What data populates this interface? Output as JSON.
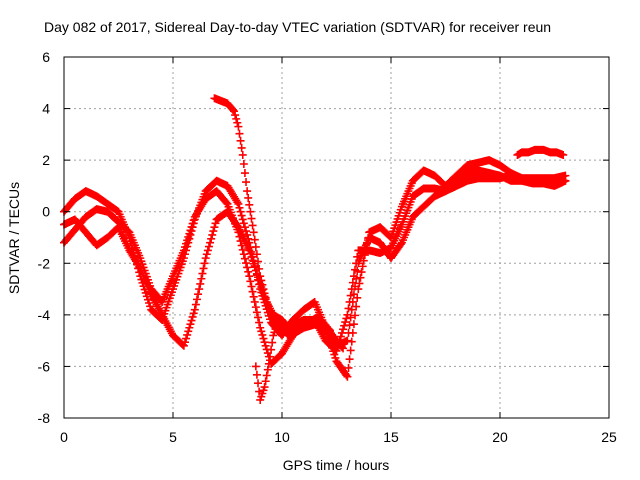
{
  "chart_data": {
    "type": "scatter",
    "title": "Day 082 of 2017, Sidereal Day-to-day VTEC variation (SDTVAR) for receiver reun",
    "xlabel": "GPS time / hours",
    "ylabel": "SDTVAR / TECUs",
    "xlim": [
      0,
      25
    ],
    "ylim": [
      -8,
      6
    ],
    "xticks": [
      0,
      5,
      10,
      15,
      20,
      25
    ],
    "yticks": [
      -8,
      -6,
      -4,
      -2,
      0,
      2,
      4,
      6
    ],
    "grid": true,
    "marker": "+",
    "series": [
      {
        "name": "trace-1",
        "color": "#ff0000",
        "x": [
          0,
          0.5,
          1.0,
          1.5,
          2.0,
          2.5,
          3.0,
          3.5,
          4.0,
          4.5,
          5.0,
          5.5,
          6.0,
          6.5,
          7.0,
          7.5,
          8.0,
          8.5,
          9.0,
          9.5,
          10.0,
          10.5,
          11.0,
          11.5,
          12.0,
          12.5,
          13.0,
          13.5,
          14.0,
          14.5,
          15.0,
          15.5,
          16.0,
          16.5,
          17.0,
          17.5,
          18.0,
          18.5,
          19.0,
          19.5,
          20.0,
          20.5,
          21.0,
          21.5,
          22.0,
          22.5,
          23.0
        ],
        "y": [
          0.0,
          0.5,
          0.8,
          0.6,
          0.3,
          0.0,
          -1.0,
          -2.5,
          -3.8,
          -4.2,
          -3.0,
          -1.8,
          -0.3,
          0.8,
          1.2,
          1.0,
          0.3,
          -1.2,
          -3.0,
          -4.3,
          -4.8,
          -4.2,
          -3.8,
          -3.5,
          -4.5,
          -5.8,
          -6.4,
          -3.0,
          -0.8,
          -0.6,
          -1.0,
          0.2,
          1.2,
          1.6,
          1.4,
          1.0,
          1.4,
          1.8,
          1.9,
          2.0,
          1.8,
          1.5,
          1.3,
          1.2,
          1.2,
          1.3,
          1.4
        ]
      },
      {
        "name": "trace-2",
        "color": "#ff0000",
        "x": [
          0,
          0.5,
          1.0,
          1.5,
          2.0,
          2.5,
          3.0,
          3.5,
          4.0,
          4.5,
          5.0,
          5.5,
          6.0,
          6.5,
          7.0,
          7.5,
          8.0,
          8.5,
          9.0,
          9.5,
          10.0,
          10.5,
          11.0,
          11.5,
          12.0,
          12.5,
          13.0,
          13.5,
          14.0,
          14.5,
          15.0,
          15.5,
          16.0,
          16.5,
          17.0,
          17.5,
          18.0,
          18.5,
          19.0,
          19.5,
          20.0,
          20.5,
          21.0,
          21.5,
          22.0,
          22.5,
          23.0
        ],
        "y": [
          -1.2,
          -0.7,
          -0.2,
          0.1,
          0.0,
          -0.4,
          -0.8,
          -1.8,
          -3.0,
          -3.5,
          -2.5,
          -1.5,
          -0.2,
          0.5,
          0.8,
          0.3,
          -0.8,
          -2.5,
          -4.5,
          -5.9,
          -5.5,
          -4.8,
          -4.4,
          -4.2,
          -5.0,
          -5.4,
          -4.0,
          -1.5,
          -1.5,
          -1.6,
          -1.4,
          -0.5,
          0.6,
          0.9,
          0.9,
          0.8,
          1.2,
          1.5,
          1.6,
          1.5,
          1.4,
          1.2,
          1.2,
          1.1,
          1.1,
          1.0,
          1.2
        ]
      },
      {
        "name": "trace-3",
        "color": "#ff0000",
        "x": [
          0,
          0.5,
          1.0,
          1.5,
          2.0,
          2.5,
          3.0,
          3.5,
          4.0,
          4.5,
          5.0,
          5.5,
          6.0,
          6.5,
          7.0,
          7.5,
          8.0,
          8.5,
          9.0,
          9.5,
          10.0,
          10.5,
          11.0,
          11.5,
          12.0,
          12.5,
          13.0,
          13.5,
          14.0,
          14.5,
          15.0,
          15.5,
          16.0,
          16.5,
          17.0,
          17.5,
          18.0,
          18.5,
          19.0,
          19.5,
          20.0,
          20.5,
          21.0,
          21.5,
          22.0,
          22.5,
          23.0
        ],
        "y": [
          -0.5,
          -0.3,
          -0.8,
          -1.3,
          -1.0,
          -0.6,
          -1.5,
          -2.2,
          -3.2,
          -4.0,
          -4.8,
          -5.2,
          -3.8,
          -1.8,
          -0.3,
          0.0,
          -0.6,
          -1.5,
          -2.8,
          -4.0,
          -4.5,
          -4.4,
          -4.2,
          -4.2,
          -4.6,
          -5.2,
          -5.0,
          -2.0,
          -1.0,
          -1.2,
          -1.8,
          -1.2,
          -0.2,
          0.2,
          0.6,
          0.8,
          1.0,
          1.2,
          1.3,
          1.3,
          1.3,
          1.4,
          1.3,
          1.3,
          1.3,
          1.3,
          1.2
        ]
      },
      {
        "name": "trace-4",
        "color": "#ff0000",
        "x": [
          6.9,
          7.2,
          7.5,
          7.8,
          8.0,
          8.2,
          8.4,
          8.7,
          9.0,
          9.3,
          9.6,
          10.0,
          10.4,
          10.8,
          11.2,
          11.6,
          12.0,
          12.4,
          12.8
        ],
        "y": [
          4.4,
          4.3,
          4.2,
          3.9,
          3.3,
          2.2,
          0.8,
          -0.8,
          -2.5,
          -3.5,
          -4.0,
          -4.2,
          -4.6,
          -4.5,
          -4.3,
          -4.1,
          -4.4,
          -4.9,
          -5.3
        ]
      },
      {
        "name": "trace-5",
        "color": "#ff0000",
        "x": [
          8.8,
          9.0,
          9.2,
          9.4,
          9.6,
          9.8,
          10.0,
          10.3,
          10.6,
          11.0,
          11.4,
          11.8,
          12.2
        ],
        "y": [
          -6.0,
          -7.3,
          -6.8,
          -5.9,
          -4.8,
          -4.3,
          -4.5,
          -4.8,
          -4.7,
          -4.5,
          -4.4,
          -4.3,
          -4.6
        ]
      },
      {
        "name": "trace-6",
        "color": "#ff0000",
        "x": [
          20.8,
          21.0,
          21.3,
          21.6,
          22.0,
          22.3,
          22.6,
          22.9
        ],
        "y": [
          2.2,
          2.3,
          2.3,
          2.4,
          2.4,
          2.3,
          2.3,
          2.2
        ]
      }
    ]
  }
}
